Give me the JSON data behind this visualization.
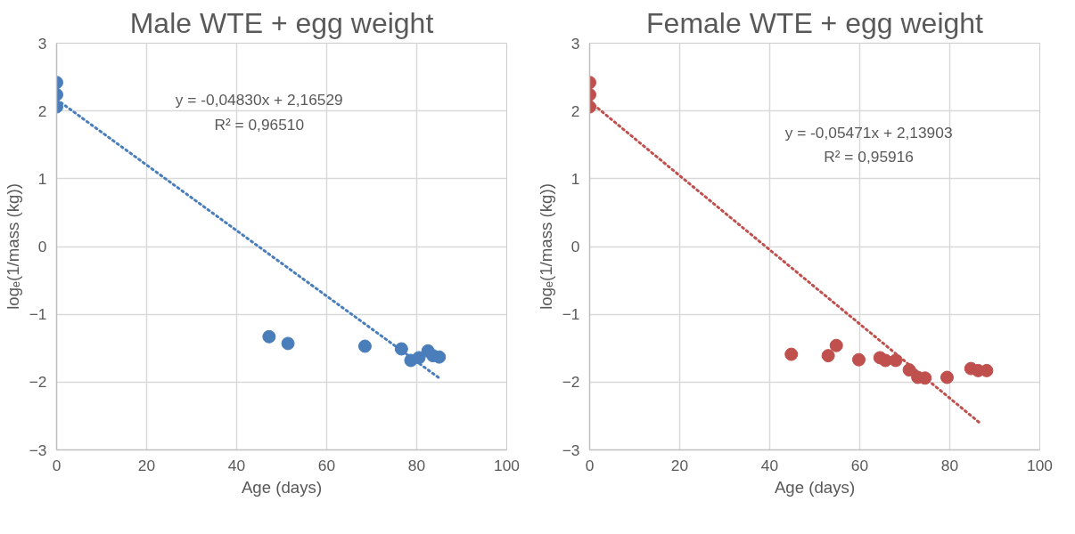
{
  "chart_data": [
    {
      "type": "scatter",
      "title": "Male WTE + egg weight",
      "xlabel": "Age (days)",
      "ylabel": "logₑ(1/mass (kg))",
      "xlim": [
        0,
        100
      ],
      "xticks": [
        0,
        20,
        40,
        60,
        80,
        100
      ],
      "ylim": [
        -3,
        3
      ],
      "yticks": [
        -3,
        -2,
        -1,
        0,
        1,
        2,
        3
      ],
      "grid": true,
      "annotations": [
        "y = -0,04830x + 2,16529",
        "R² = 0,96510"
      ],
      "series": [
        {
          "marker": "circle",
          "color": "#4a7ebb",
          "x": [
            0,
            0,
            0,
            47.2,
            51.4,
            68.5,
            76.6,
            78.7,
            80.5,
            82.5,
            83.6,
            85
          ],
          "values": [
            2.06,
            2.24,
            2.42,
            -1.33,
            -1.43,
            -1.47,
            -1.51,
            -1.68,
            -1.64,
            -1.54,
            -1.61,
            -1.63
          ]
        },
        {
          "type": "line",
          "marker": "none",
          "line_style": "dotted",
          "color": "#4a7ebb",
          "x": [
            0,
            85
          ],
          "values": [
            2.17,
            -1.94
          ]
        }
      ]
    },
    {
      "type": "scatter",
      "title": "Female WTE + egg weight",
      "xlabel": "Age (days)",
      "ylabel": "logₑ(1/mass (kg))",
      "xlim": [
        0,
        100
      ],
      "xticks": [
        0,
        20,
        40,
        60,
        80,
        100
      ],
      "ylim": [
        -3,
        3
      ],
      "yticks": [
        -3,
        -2,
        -1,
        0,
        1,
        2,
        3
      ],
      "grid": true,
      "annotations": [
        "y = -0,05471x + 2,13903",
        "R² = 0,95916"
      ],
      "series": [
        {
          "marker": "circle",
          "color": "#c0504d",
          "x": [
            0,
            0,
            0,
            44.8,
            53,
            54.8,
            59.8,
            64.5,
            65.7,
            68,
            71,
            72.9,
            74.5,
            79.4,
            84.7,
            86.3,
            88.2
          ],
          "values": [
            2.06,
            2.24,
            2.42,
            -1.59,
            -1.61,
            -1.46,
            -1.67,
            -1.64,
            -1.68,
            -1.68,
            -1.82,
            -1.93,
            -1.94,
            -1.93,
            -1.8,
            -1.83,
            -1.83
          ]
        },
        {
          "type": "line",
          "marker": "none",
          "line_style": "dotted",
          "color": "#c0504d",
          "x": [
            0,
            87
          ],
          "values": [
            2.14,
            -2.62
          ]
        }
      ]
    }
  ]
}
